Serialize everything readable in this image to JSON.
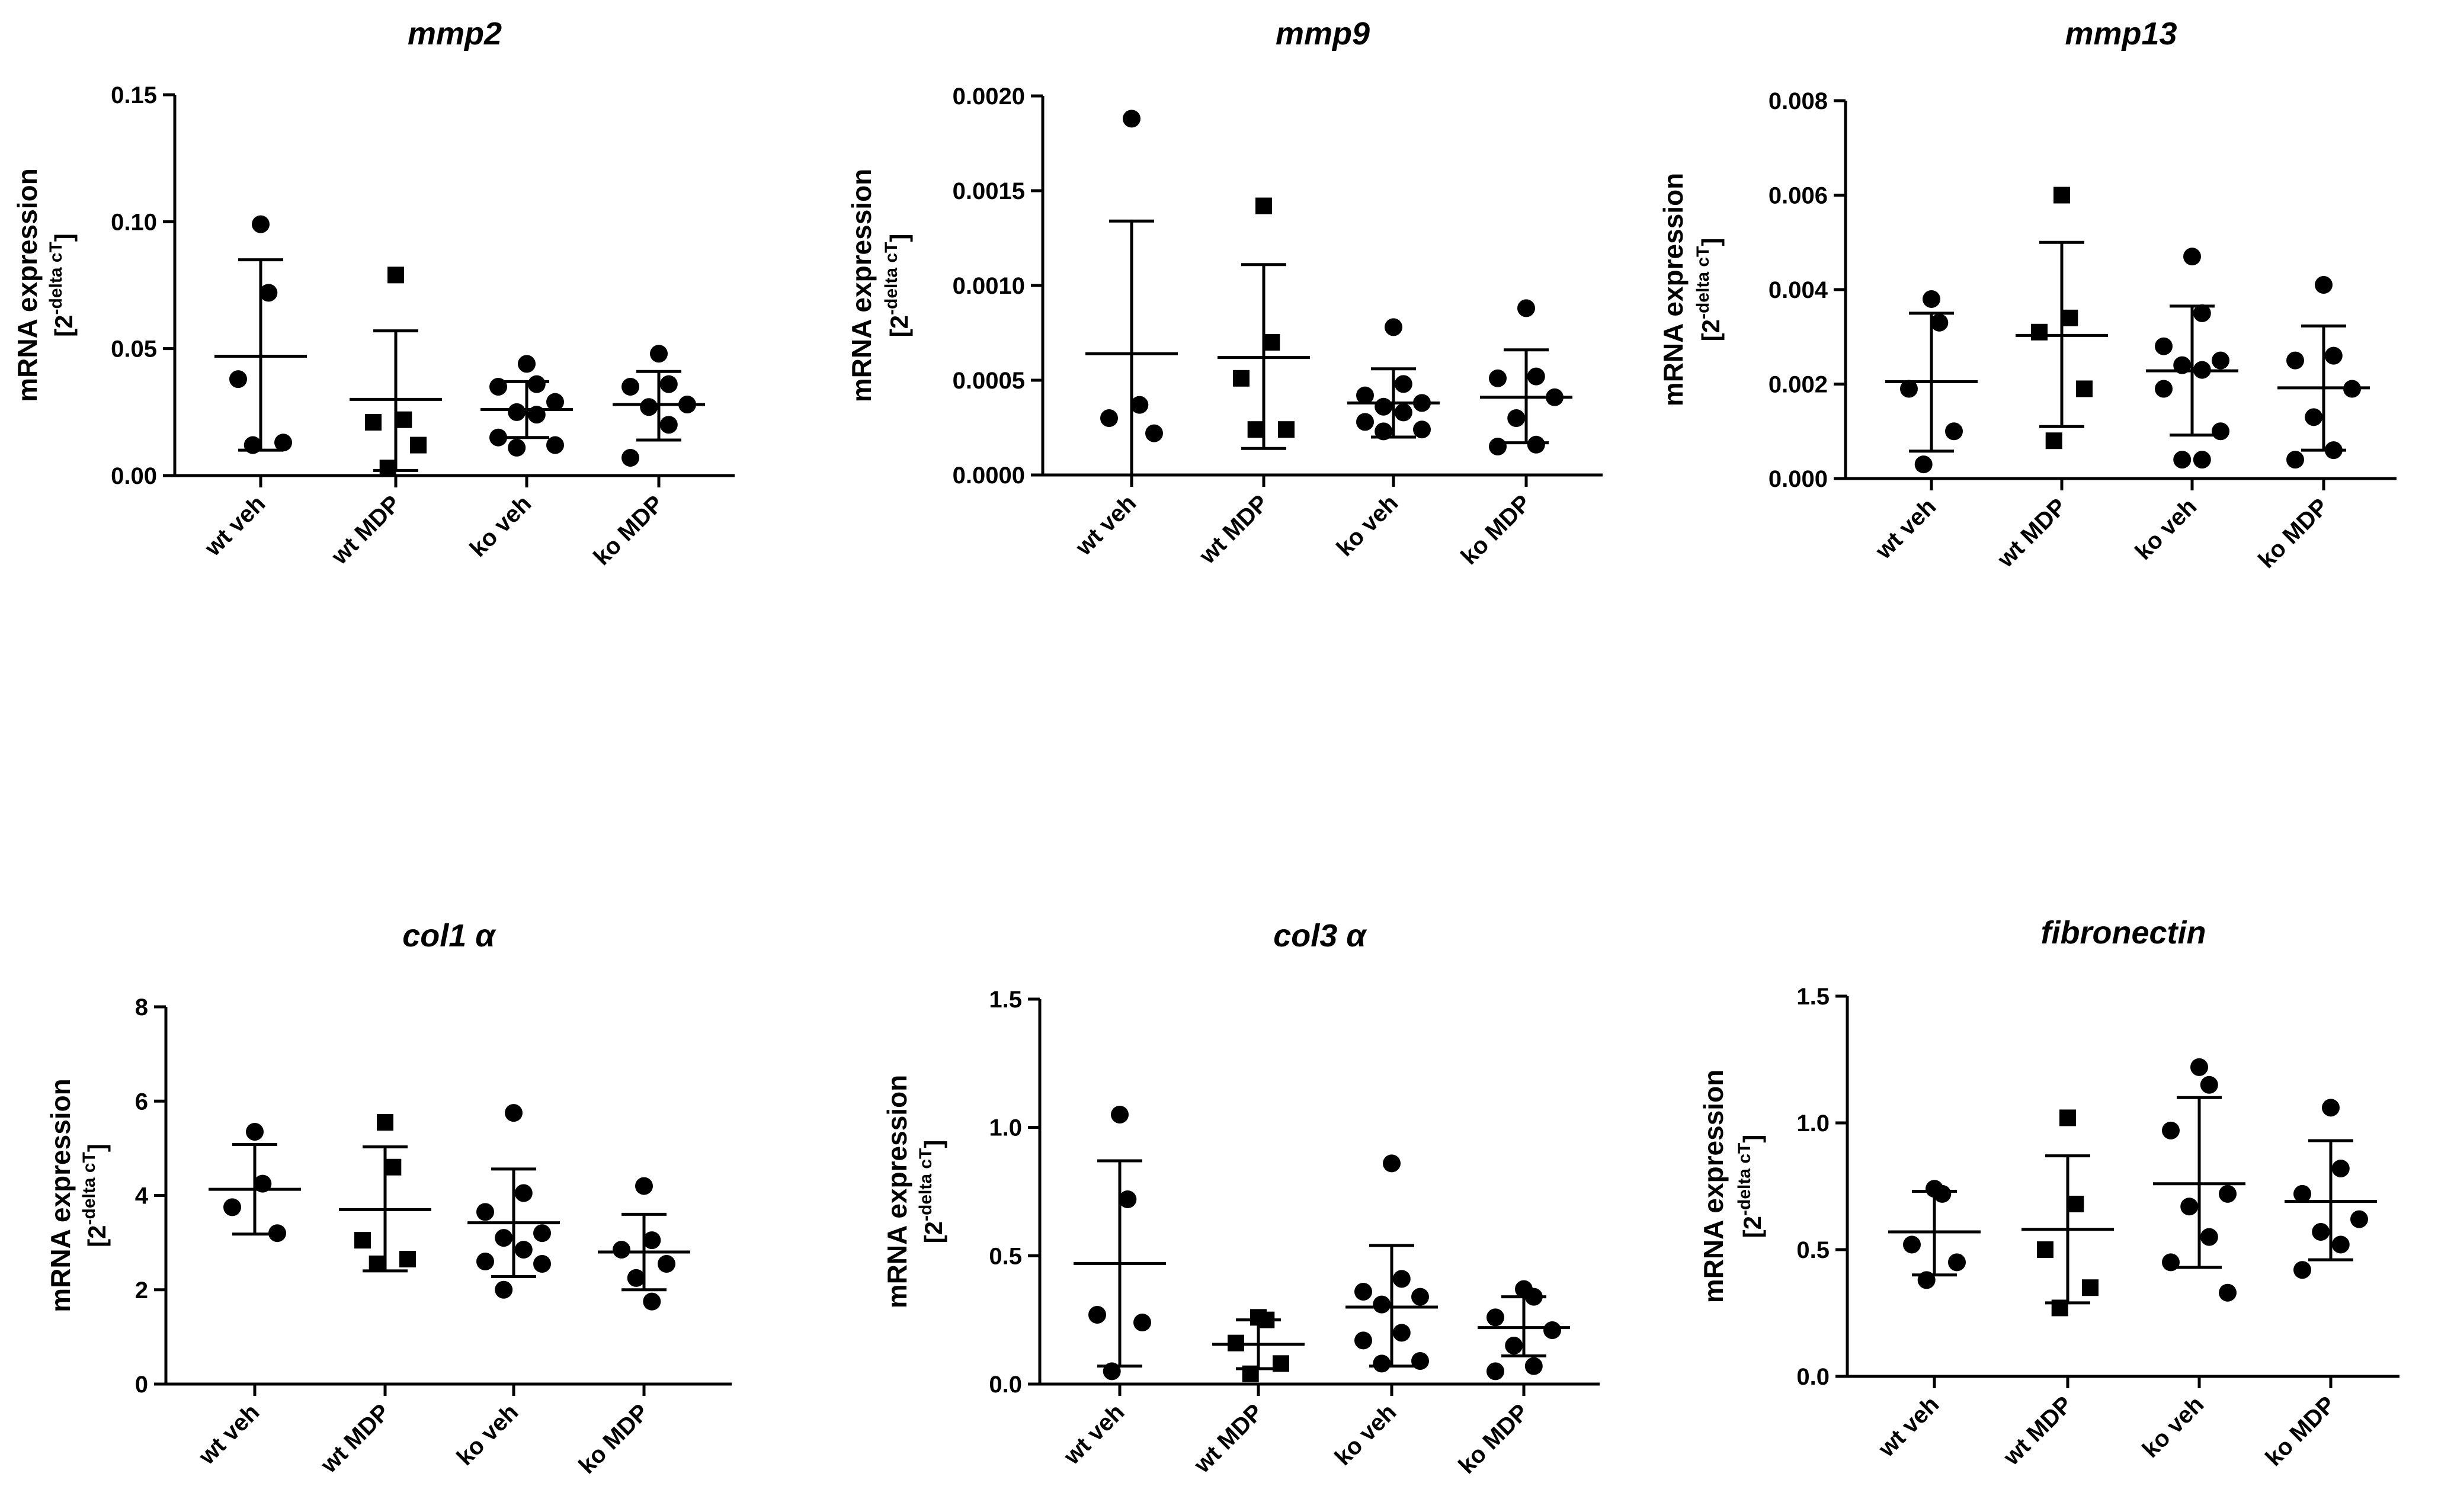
{
  "chart_data": [
    {
      "type": "scatter",
      "title": "mmp2",
      "ylabel": "mRNA expression",
      "ylabel_base": "[2",
      "ylabel_sup": "-delta cT",
      "ylabel_close": "]",
      "ylim": [
        0,
        0.15
      ],
      "yticks": [
        0,
        0.05,
        0.1,
        0.15
      ],
      "ytick_labels": [
        "0.00",
        "0.05",
        "0.10",
        "0.15"
      ],
      "categories": [
        "wt veh",
        "wt MDP",
        "ko veh",
        "ko MDP"
      ],
      "markers": [
        "circle",
        "square",
        "circle",
        "circle"
      ],
      "groups": [
        {
          "points": [
            0.099,
            0.072,
            0.038,
            0.013,
            0.012
          ],
          "mean": 0.047,
          "sd_low": 0.01,
          "sd_high": 0.085
        },
        {
          "points": [
            0.079,
            0.022,
            0.021,
            0.012,
            0.003
          ],
          "mean": 0.03,
          "sd_low": 0.002,
          "sd_high": 0.057
        },
        {
          "points": [
            0.044,
            0.036,
            0.035,
            0.029,
            0.025,
            0.024,
            0.015,
            0.012,
            0.011
          ],
          "mean": 0.026,
          "sd_low": 0.015,
          "sd_high": 0.037
        },
        {
          "points": [
            0.048,
            0.036,
            0.035,
            0.028,
            0.027,
            0.02,
            0.007
          ],
          "mean": 0.028,
          "sd_low": 0.014,
          "sd_high": 0.041
        }
      ]
    },
    {
      "type": "scatter",
      "title": "mmp9",
      "ylabel": "mRNA expression",
      "ylabel_base": "[2",
      "ylabel_sup": "-delta cT",
      "ylabel_close": "]",
      "ylim": [
        0,
        0.002
      ],
      "yticks": [
        0,
        0.0005,
        0.001,
        0.0015,
        0.002
      ],
      "ytick_labels": [
        "0.0000",
        "0.0005",
        "0.0010",
        "0.0015",
        "0.0020"
      ],
      "categories": [
        "wt veh",
        "wt MDP",
        "ko veh",
        "ko MDP"
      ],
      "markers": [
        "circle",
        "square",
        "circle",
        "circle"
      ],
      "groups": [
        {
          "points": [
            0.00188,
            0.00037,
            0.0003,
            0.00022
          ],
          "mean": 0.00064,
          "sd_low": 0.0,
          "sd_high": 0.00134
        },
        {
          "points": [
            0.00142,
            0.0007,
            0.00051,
            0.00024,
            0.00024
          ],
          "mean": 0.00062,
          "sd_low": 0.00014,
          "sd_high": 0.00111
        },
        {
          "points": [
            0.00078,
            0.00048,
            0.00042,
            0.00038,
            0.00036,
            0.00033,
            0.00028,
            0.00024,
            0.00023
          ],
          "mean": 0.00038,
          "sd_low": 0.0002,
          "sd_high": 0.00056
        },
        {
          "points": [
            0.00088,
            0.00052,
            0.00051,
            0.00041,
            0.0003,
            0.00016,
            0.00015
          ],
          "mean": 0.00041,
          "sd_low": 0.00017,
          "sd_high": 0.00066
        }
      ]
    },
    {
      "type": "scatter",
      "title": "mmp13",
      "ylabel": "mRNA expression",
      "ylabel_base": "[2",
      "ylabel_sup": "-delta cT",
      "ylabel_close": "]",
      "ylim": [
        0,
        0.008
      ],
      "yticks": [
        0,
        0.002,
        0.004,
        0.006,
        0.008
      ],
      "ytick_labels": [
        "0.000",
        "0.002",
        "0.004",
        "0.006",
        "0.008"
      ],
      "categories": [
        "wt veh",
        "wt MDP",
        "ko veh",
        "ko MDP"
      ],
      "markers": [
        "circle",
        "square",
        "circle",
        "circle"
      ],
      "groups": [
        {
          "points": [
            0.0038,
            0.0033,
            0.0019,
            0.001,
            0.0003
          ],
          "mean": 0.00205,
          "sd_low": 0.00058,
          "sd_high": 0.0035
        },
        {
          "points": [
            0.006,
            0.0034,
            0.0031,
            0.0019,
            0.0008
          ],
          "mean": 0.00303,
          "sd_low": 0.0011,
          "sd_high": 0.005
        },
        {
          "points": [
            0.0047,
            0.0035,
            0.0028,
            0.0025,
            0.0024,
            0.0023,
            0.0019,
            0.001,
            0.0004,
            0.0004
          ],
          "mean": 0.00228,
          "sd_low": 0.00092,
          "sd_high": 0.00365
        },
        {
          "points": [
            0.0041,
            0.0026,
            0.0025,
            0.0019,
            0.0013,
            0.0006,
            0.0004
          ],
          "mean": 0.00192,
          "sd_low": 0.0006,
          "sd_high": 0.00323
        }
      ]
    },
    {
      "type": "scatter",
      "title": "col1 α",
      "ylabel": "mRNA expression",
      "ylabel_base": "[2",
      "ylabel_sup": "-delta cT",
      "ylabel_close": "]",
      "ylim": [
        0,
        8
      ],
      "yticks": [
        0,
        2,
        4,
        6,
        8
      ],
      "ytick_labels": [
        "0",
        "2",
        "4",
        "6",
        "8"
      ],
      "categories": [
        "wt veh",
        "wt MDP",
        "ko veh",
        "ko MDP"
      ],
      "markers": [
        "circle",
        "square",
        "circle",
        "circle"
      ],
      "groups": [
        {
          "points": [
            5.35,
            4.25,
            3.75,
            3.2
          ],
          "mean": 4.13,
          "sd_low": 3.18,
          "sd_high": 5.08
        },
        {
          "points": [
            5.55,
            4.6,
            3.05,
            2.65,
            2.55
          ],
          "mean": 3.7,
          "sd_low": 2.4,
          "sd_high": 5.03
        },
        {
          "points": [
            5.75,
            4.05,
            3.65,
            3.2,
            3.1,
            2.85,
            2.6,
            2.55,
            2.0
          ],
          "mean": 3.42,
          "sd_low": 2.28,
          "sd_high": 4.56
        },
        {
          "points": [
            4.2,
            3.05,
            2.85,
            2.55,
            2.25,
            1.75
          ],
          "mean": 2.8,
          "sd_low": 2.0,
          "sd_high": 3.6
        }
      ]
    },
    {
      "type": "scatter",
      "title": "col3 α",
      "ylabel": "mRNA expression",
      "ylabel_base": "[2",
      "ylabel_sup": "-delta cT",
      "ylabel_close": "]",
      "ylim": [
        0,
        1.5
      ],
      "yticks": [
        0,
        0.5,
        1.0,
        1.5
      ],
      "ytick_labels": [
        "0.0",
        "0.5",
        "1.0",
        "1.5"
      ],
      "categories": [
        "wt veh",
        "wt MDP",
        "ko veh",
        "ko MDP"
      ],
      "markers": [
        "circle",
        "square",
        "circle",
        "circle"
      ],
      "groups": [
        {
          "points": [
            1.05,
            0.72,
            0.27,
            0.24,
            0.05
          ],
          "mean": 0.47,
          "sd_low": 0.07,
          "sd_high": 0.87
        },
        {
          "points": [
            0.26,
            0.25,
            0.16,
            0.08,
            0.04
          ],
          "mean": 0.155,
          "sd_low": 0.06,
          "sd_high": 0.25
        },
        {
          "points": [
            0.86,
            0.41,
            0.36,
            0.34,
            0.31,
            0.2,
            0.17,
            0.09,
            0.08
          ],
          "mean": 0.3,
          "sd_low": 0.07,
          "sd_high": 0.54
        },
        {
          "points": [
            0.37,
            0.34,
            0.26,
            0.21,
            0.15,
            0.07,
            0.05
          ],
          "mean": 0.22,
          "sd_low": 0.11,
          "sd_high": 0.34
        }
      ]
    },
    {
      "type": "scatter",
      "title": "fibronectin",
      "ylabel": "mRNA expression",
      "ylabel_base": "[2",
      "ylabel_sup": "-delta cT",
      "ylabel_close": "]",
      "ylim": [
        0,
        1.5
      ],
      "yticks": [
        0,
        0.5,
        1.0,
        1.5
      ],
      "ytick_labels": [
        "0.0",
        "0.5",
        "1.0",
        "1.5"
      ],
      "categories": [
        "wt veh",
        "wt MDP",
        "ko veh",
        "ko MDP"
      ],
      "markers": [
        "circle",
        "square",
        "circle",
        "circle"
      ],
      "groups": [
        {
          "points": [
            0.74,
            0.72,
            0.52,
            0.45,
            0.38
          ],
          "mean": 0.57,
          "sd_low": 0.4,
          "sd_high": 0.73
        },
        {
          "points": [
            1.02,
            0.68,
            0.5,
            0.35,
            0.27
          ],
          "mean": 0.58,
          "sd_low": 0.29,
          "sd_high": 0.87
        },
        {
          "points": [
            1.22,
            1.15,
            0.97,
            0.72,
            0.67,
            0.55,
            0.45,
            0.33
          ],
          "mean": 0.76,
          "sd_low": 0.43,
          "sd_high": 1.1
        },
        {
          "points": [
            1.06,
            0.82,
            0.72,
            0.62,
            0.57,
            0.52,
            0.42
          ],
          "mean": 0.69,
          "sd_low": 0.46,
          "sd_high": 0.93
        }
      ]
    }
  ]
}
